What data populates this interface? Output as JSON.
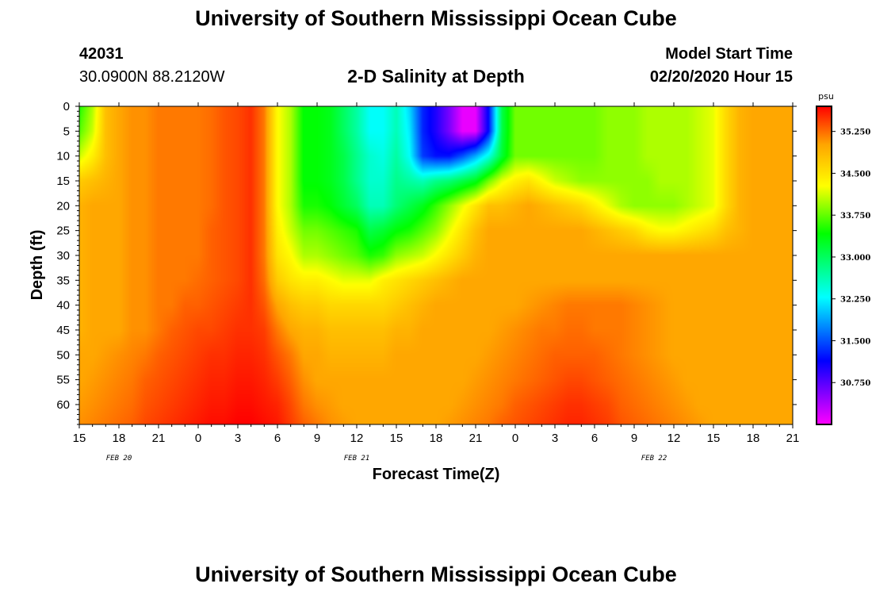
{
  "header": {
    "title": "University of Southern Mississippi Ocean Cube",
    "station_id": "42031",
    "coordinates": "30.0900N 88.2120W",
    "plot_title": "2-D Salinity at Depth",
    "model_label": "Model Start Time",
    "model_time": "02/20/2020 Hour 15"
  },
  "footer": {
    "title": "University of Southern Mississippi Ocean Cube"
  },
  "chart_data": {
    "type": "heatmap",
    "title": "2-D Salinity at Depth",
    "xlabel": "Forecast Time(Z)",
    "ylabel": "Depth (ft)",
    "x_ticks": [
      "15",
      "18",
      "21",
      "0",
      "3",
      "6",
      "9",
      "12",
      "15",
      "18",
      "21",
      "0",
      "3",
      "6",
      "9",
      "12",
      "15",
      "18",
      "21"
    ],
    "x_range_hours": [
      0,
      54
    ],
    "date_labels": [
      {
        "label": "FEB 20",
        "hour": 3
      },
      {
        "label": "FEB 21",
        "hour": 21
      },
      {
        "label": "FEB 22",
        "hour": 43.5
      }
    ],
    "y_ticks": [
      "0",
      "5",
      "10",
      "15",
      "20",
      "25",
      "30",
      "35",
      "40",
      "45",
      "50",
      "55",
      "60"
    ],
    "y_range": [
      0,
      64
    ],
    "colorbar": {
      "unit": "psu",
      "ticks": [
        "35.250",
        "34.500",
        "33.750",
        "33.000",
        "32.250",
        "31.500",
        "30.750"
      ],
      "tick_values": [
        35.25,
        34.5,
        33.75,
        33.0,
        32.25,
        31.5,
        30.75
      ],
      "range": [
        30.0,
        35.7
      ]
    },
    "field": {
      "hours": [
        0,
        1,
        2,
        3,
        4,
        5,
        6,
        7,
        8,
        9,
        10,
        11,
        12,
        13,
        14,
        15,
        16,
        17,
        18,
        19,
        20,
        21,
        22,
        23,
        24,
        25,
        26,
        27,
        28,
        29,
        30,
        31,
        32,
        33,
        34,
        35,
        36,
        37,
        38,
        39,
        40,
        41,
        42,
        43,
        44,
        45,
        46,
        47,
        48,
        49,
        50,
        51,
        52,
        53,
        54
      ],
      "depths": [
        0,
        5,
        10,
        15,
        20,
        25,
        30,
        35,
        40,
        45,
        50,
        55,
        60,
        64
      ],
      "values": [
        [
          33.5,
          34.0,
          34.8,
          35.0,
          35.1,
          35.1,
          35.2,
          35.2,
          35.2,
          35.2,
          35.25,
          35.35,
          35.4,
          35.5,
          35.2,
          34.3,
          34.0,
          33.4,
          33.4,
          33.3,
          33.0,
          32.7,
          32.3,
          32.3,
          32.6,
          32.1,
          31.3,
          31.0,
          30.6,
          30.1,
          30.1,
          31.2,
          33.1,
          33.8,
          33.8,
          33.8,
          33.8,
          33.8,
          33.8,
          33.8,
          33.9,
          33.9,
          33.9,
          34.0,
          34.0,
          34.0,
          34.0,
          34.1,
          34.2,
          34.6,
          34.9,
          35.0,
          35.0,
          35.0,
          35.0
        ],
        [
          33.7,
          34.1,
          34.8,
          35.0,
          35.1,
          35.1,
          35.2,
          35.2,
          35.2,
          35.2,
          35.25,
          35.35,
          35.4,
          35.5,
          35.2,
          34.3,
          34.0,
          33.4,
          33.4,
          33.3,
          33.0,
          32.7,
          32.3,
          32.3,
          32.6,
          32.2,
          31.3,
          31.0,
          30.6,
          30.1,
          30.1,
          31.2,
          33.1,
          33.8,
          33.8,
          33.8,
          33.8,
          33.8,
          33.8,
          33.8,
          33.9,
          33.9,
          33.9,
          34.0,
          34.0,
          34.0,
          34.0,
          34.1,
          34.2,
          34.6,
          34.9,
          35.0,
          35.0,
          35.0,
          35.0
        ],
        [
          34.1,
          34.4,
          34.8,
          35.0,
          35.1,
          35.1,
          35.2,
          35.2,
          35.2,
          35.2,
          35.25,
          35.35,
          35.4,
          35.5,
          35.2,
          34.3,
          34.0,
          33.4,
          33.4,
          33.3,
          33.1,
          32.8,
          32.5,
          32.4,
          32.7,
          32.3,
          31.4,
          31.2,
          31.2,
          31.5,
          31.9,
          32.4,
          33.2,
          33.8,
          33.8,
          33.8,
          33.8,
          33.8,
          33.8,
          33.8,
          33.9,
          33.9,
          33.9,
          34.0,
          34.0,
          34.0,
          34.0,
          34.1,
          34.2,
          34.6,
          34.9,
          35.0,
          35.0,
          35.0,
          35.0
        ],
        [
          34.7,
          34.8,
          34.9,
          35.0,
          35.1,
          35.1,
          35.2,
          35.2,
          35.2,
          35.2,
          35.25,
          35.35,
          35.4,
          35.5,
          35.2,
          34.3,
          34.0,
          33.4,
          33.4,
          33.3,
          33.1,
          32.8,
          32.5,
          32.5,
          32.8,
          32.7,
          32.6,
          32.8,
          32.9,
          33.1,
          33.3,
          33.8,
          34.2,
          34.4,
          34.5,
          34.3,
          34.1,
          34.0,
          33.9,
          33.9,
          33.9,
          33.9,
          33.9,
          33.9,
          34.0,
          34.0,
          34.0,
          34.1,
          34.2,
          34.6,
          34.9,
          35.0,
          35.0,
          35.0,
          35.0
        ],
        [
          34.9,
          35.0,
          35.0,
          35.0,
          35.1,
          35.1,
          35.2,
          35.2,
          35.2,
          35.2,
          35.25,
          35.35,
          35.4,
          35.5,
          35.2,
          34.3,
          34.0,
          33.5,
          33.5,
          33.4,
          33.2,
          33.0,
          32.6,
          32.6,
          32.9,
          33.1,
          33.3,
          33.6,
          33.9,
          34.2,
          34.5,
          34.8,
          34.8,
          34.9,
          35.0,
          34.9,
          34.8,
          34.7,
          34.6,
          34.4,
          34.2,
          34.0,
          33.9,
          33.9,
          33.9,
          33.9,
          34.0,
          34.1,
          34.2,
          34.6,
          34.9,
          35.0,
          35.0,
          35.0,
          35.0
        ],
        [
          34.9,
          35.0,
          35.0,
          35.0,
          35.1,
          35.1,
          35.2,
          35.2,
          35.2,
          35.2,
          35.3,
          35.35,
          35.4,
          35.5,
          35.2,
          34.4,
          34.1,
          33.8,
          33.8,
          33.7,
          33.6,
          33.5,
          33.1,
          33.2,
          33.4,
          33.5,
          33.7,
          33.9,
          34.2,
          34.5,
          34.8,
          35.0,
          35.0,
          35.0,
          35.0,
          35.0,
          35.0,
          35.0,
          35.0,
          34.9,
          34.8,
          34.7,
          34.6,
          34.4,
          34.3,
          34.3,
          34.4,
          34.5,
          34.6,
          34.8,
          34.9,
          35.0,
          35.0,
          35.0,
          35.0
        ],
        [
          34.9,
          35.0,
          35.0,
          35.0,
          35.1,
          35.1,
          35.2,
          35.2,
          35.2,
          35.2,
          35.3,
          35.35,
          35.4,
          35.5,
          35.2,
          34.5,
          34.3,
          34.0,
          34.0,
          33.9,
          33.8,
          33.7,
          33.5,
          33.6,
          33.9,
          34.0,
          34.1,
          34.3,
          34.5,
          34.7,
          34.9,
          35.0,
          35.0,
          35.0,
          35.0,
          35.0,
          35.0,
          35.0,
          35.0,
          35.0,
          35.0,
          35.0,
          35.0,
          35.0,
          35.0,
          35.0,
          35.0,
          35.0,
          35.0,
          35.0,
          35.0,
          35.0,
          35.0,
          35.0,
          35.0
        ],
        [
          34.9,
          35.0,
          35.0,
          35.0,
          35.1,
          35.1,
          35.2,
          35.2,
          35.2,
          35.25,
          35.3,
          35.35,
          35.4,
          35.5,
          35.25,
          34.7,
          34.5,
          34.4,
          34.4,
          34.3,
          34.2,
          34.2,
          34.2,
          34.4,
          34.5,
          34.6,
          34.7,
          34.8,
          34.9,
          35.0,
          35.0,
          35.0,
          35.0,
          35.0,
          35.0,
          35.0,
          35.0,
          35.0,
          35.0,
          35.0,
          35.0,
          35.0,
          35.0,
          35.0,
          35.0,
          35.0,
          35.0,
          35.0,
          35.0,
          35.0,
          35.0,
          35.0,
          35.0,
          35.0,
          35.0
        ],
        [
          34.9,
          35.0,
          35.0,
          35.0,
          35.1,
          35.1,
          35.2,
          35.2,
          35.3,
          35.3,
          35.35,
          35.4,
          35.45,
          35.5,
          35.35,
          35.0,
          34.8,
          34.7,
          34.7,
          34.6,
          34.6,
          34.6,
          34.6,
          34.6,
          34.7,
          34.8,
          34.9,
          35.0,
          35.0,
          35.0,
          35.0,
          35.0,
          35.0,
          35.0,
          35.05,
          35.1,
          35.15,
          35.2,
          35.2,
          35.2,
          35.2,
          35.2,
          35.15,
          35.1,
          35.05,
          35.0,
          35.0,
          35.0,
          35.0,
          35.0,
          35.0,
          35.0,
          35.0,
          35.0,
          35.0
        ],
        [
          34.9,
          35.0,
          35.0,
          35.0,
          35.1,
          35.1,
          35.2,
          35.3,
          35.35,
          35.4,
          35.4,
          35.45,
          35.5,
          35.5,
          35.45,
          35.2,
          35.0,
          34.9,
          34.9,
          34.8,
          34.8,
          34.8,
          34.8,
          34.8,
          34.9,
          34.9,
          35.0,
          35.0,
          35.0,
          35.0,
          35.0,
          35.0,
          35.05,
          35.1,
          35.15,
          35.2,
          35.2,
          35.25,
          35.25,
          35.2,
          35.2,
          35.2,
          35.15,
          35.1,
          35.05,
          35.0,
          35.0,
          35.0,
          35.0,
          35.0,
          35.0,
          35.0,
          35.0,
          35.0,
          35.0
        ],
        [
          35.0,
          35.0,
          35.05,
          35.1,
          35.15,
          35.2,
          35.3,
          35.35,
          35.4,
          35.45,
          35.5,
          35.5,
          35.55,
          35.55,
          35.5,
          35.35,
          35.2,
          35.0,
          35.0,
          34.9,
          34.9,
          34.9,
          34.9,
          34.9,
          35.0,
          35.0,
          35.0,
          35.0,
          35.0,
          35.0,
          35.0,
          35.05,
          35.1,
          35.15,
          35.2,
          35.25,
          35.3,
          35.3,
          35.3,
          35.3,
          35.25,
          35.2,
          35.15,
          35.1,
          35.05,
          35.0,
          35.0,
          35.0,
          35.0,
          35.0,
          35.0,
          35.0,
          35.0,
          35.0,
          35.0
        ],
        [
          35.0,
          35.05,
          35.1,
          35.15,
          35.2,
          35.3,
          35.35,
          35.4,
          35.45,
          35.5,
          35.55,
          35.55,
          35.6,
          35.6,
          35.55,
          35.45,
          35.3,
          35.1,
          35.0,
          35.0,
          35.0,
          35.0,
          35.0,
          35.0,
          35.0,
          35.0,
          35.0,
          35.0,
          35.0,
          35.0,
          35.05,
          35.1,
          35.15,
          35.2,
          35.25,
          35.3,
          35.35,
          35.4,
          35.4,
          35.35,
          35.3,
          35.25,
          35.2,
          35.15,
          35.1,
          35.05,
          35.0,
          35.0,
          35.0,
          35.0,
          35.0,
          35.0,
          35.0,
          35.0,
          35.0
        ],
        [
          35.05,
          35.1,
          35.15,
          35.2,
          35.25,
          35.35,
          35.4,
          35.45,
          35.5,
          35.55,
          35.6,
          35.6,
          35.65,
          35.65,
          35.6,
          35.55,
          35.4,
          35.2,
          35.1,
          35.05,
          35.0,
          35.0,
          35.0,
          35.0,
          35.0,
          35.0,
          35.0,
          35.0,
          35.0,
          35.05,
          35.1,
          35.15,
          35.2,
          35.3,
          35.35,
          35.4,
          35.45,
          35.5,
          35.5,
          35.45,
          35.4,
          35.3,
          35.25,
          35.2,
          35.15,
          35.1,
          35.05,
          35.0,
          35.0,
          35.0,
          35.0,
          35.0,
          35.0,
          35.0,
          35.0
        ],
        [
          35.1,
          35.15,
          35.2,
          35.25,
          35.3,
          35.4,
          35.45,
          35.5,
          35.55,
          35.6,
          35.65,
          35.65,
          35.7,
          35.7,
          35.65,
          35.6,
          35.45,
          35.3,
          35.2,
          35.1,
          35.05,
          35.0,
          35.0,
          35.0,
          35.0,
          35.0,
          35.0,
          35.0,
          35.05,
          35.1,
          35.15,
          35.2,
          35.3,
          35.35,
          35.4,
          35.45,
          35.5,
          35.55,
          35.55,
          35.5,
          35.45,
          35.35,
          35.3,
          35.25,
          35.2,
          35.15,
          35.1,
          35.05,
          35.0,
          35.0,
          35.0,
          35.0,
          35.0,
          35.0,
          35.0
        ]
      ]
    }
  }
}
